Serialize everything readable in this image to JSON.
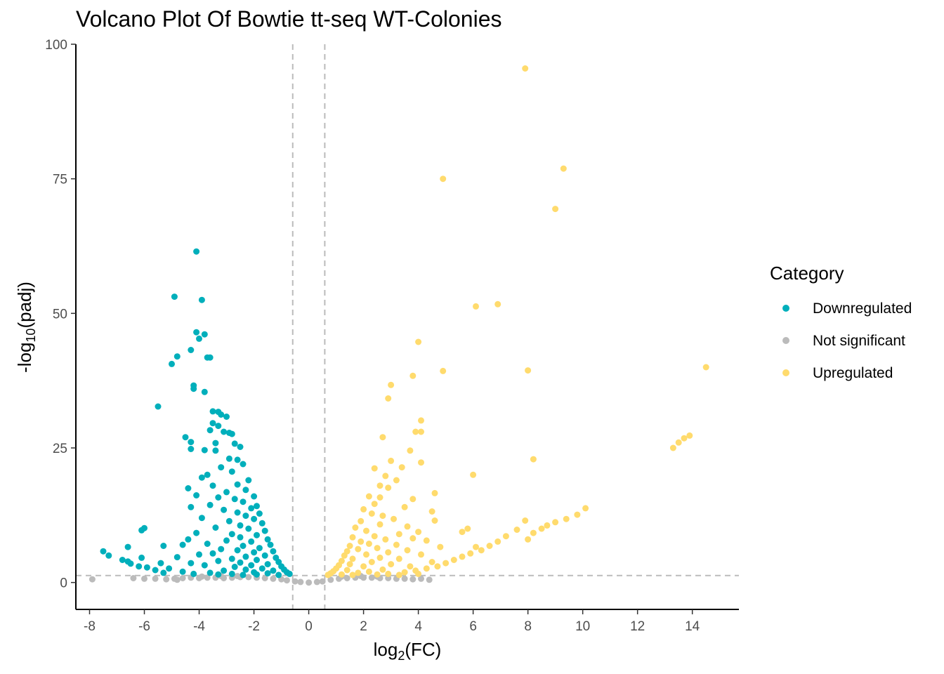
{
  "chart_data": {
    "type": "scatter",
    "title": "Volcano Plot Of Bowtie tt-seq WT-Colonies",
    "xlabel_main": "log",
    "xlabel_sub": "2",
    "xlabel_rest": "(FC)",
    "ylabel_main": "-log",
    "ylabel_sub": "10",
    "ylabel_rest": "(padj)",
    "xlim": [
      -8.5,
      15.7
    ],
    "ylim": [
      -5,
      100
    ],
    "x_ticks": [
      -8,
      -6,
      -4,
      -2,
      0,
      2,
      4,
      6,
      8,
      10,
      12,
      14
    ],
    "x_tick_labels": [
      "-8",
      "-6",
      "-4",
      "-2",
      "0",
      "2",
      "4",
      "6",
      "8",
      "10",
      "12",
      "14"
    ],
    "y_ticks": [
      0,
      25,
      50,
      75,
      100
    ],
    "y_tick_labels": [
      "0",
      "25",
      "50",
      "75",
      "100"
    ],
    "thresholds": {
      "fc_low": -0.585,
      "fc_high": 0.585,
      "padj_line": 1.3
    },
    "legend": {
      "title": "Category",
      "position": "right",
      "entries": [
        {
          "name": "Downregulated",
          "color": "#00AFBB"
        },
        {
          "name": "Not significant",
          "color": "#BBBBBB"
        },
        {
          "name": "Upregulated",
          "color": "#FFDB6D"
        }
      ]
    },
    "series": [
      {
        "name": "Not significant",
        "color": "#BBBBBB",
        "points": [
          [
            -6.4,
            0.8
          ],
          [
            -6.0,
            0.7
          ],
          [
            -5.6,
            0.7
          ],
          [
            -5.2,
            0.6
          ],
          [
            -4.9,
            0.7
          ],
          [
            -4.6,
            0.8
          ],
          [
            -4.3,
            0.9
          ],
          [
            -4.0,
            0.8
          ],
          [
            -3.7,
            0.9
          ],
          [
            -3.4,
            0.9
          ],
          [
            -3.1,
            0.8
          ],
          [
            -2.8,
            0.9
          ],
          [
            -2.5,
            1.0
          ],
          [
            -2.2,
            1.0
          ],
          [
            -1.9,
            0.9
          ],
          [
            -1.6,
            0.8
          ],
          [
            -1.3,
            0.7
          ],
          [
            -1.0,
            0.6
          ],
          [
            -0.8,
            0.4
          ],
          [
            -0.5,
            0.2
          ],
          [
            -0.3,
            0.1
          ],
          [
            0.0,
            0.0
          ],
          [
            0.3,
            0.1
          ],
          [
            0.5,
            0.2
          ],
          [
            0.8,
            0.5
          ],
          [
            1.1,
            0.7
          ],
          [
            1.4,
            0.8
          ],
          [
            1.7,
            0.9
          ],
          [
            2.0,
            0.9
          ],
          [
            2.3,
            0.9
          ],
          [
            2.6,
            0.8
          ],
          [
            2.9,
            0.8
          ],
          [
            3.2,
            0.7
          ],
          [
            3.5,
            0.7
          ],
          [
            3.8,
            0.6
          ],
          [
            4.1,
            0.7
          ],
          [
            -3.9,
            1.1
          ],
          [
            -3.2,
            1.2
          ],
          [
            -2.6,
            1.2
          ],
          [
            1.2,
            1.1
          ],
          [
            1.9,
            1.2
          ],
          [
            2.5,
            1.1
          ],
          [
            -7.9,
            0.6
          ],
          [
            -4.8,
            0.5
          ],
          [
            4.4,
            0.5
          ]
        ]
      },
      {
        "name": "Downregulated",
        "color": "#00AFBB",
        "points": [
          [
            -4.1,
            61.5
          ],
          [
            -4.9,
            53.1
          ],
          [
            -3.9,
            52.5
          ],
          [
            -4.1,
            46.5
          ],
          [
            -3.8,
            46.1
          ],
          [
            -4.0,
            45.3
          ],
          [
            -4.3,
            43.2
          ],
          [
            -4.8,
            42.0
          ],
          [
            -3.7,
            41.8
          ],
          [
            -3.6,
            41.8
          ],
          [
            -5.0,
            40.6
          ],
          [
            -4.2,
            36.6
          ],
          [
            -4.2,
            36.0
          ],
          [
            -3.8,
            35.4
          ],
          [
            -5.5,
            32.7
          ],
          [
            -3.5,
            31.8
          ],
          [
            -3.3,
            31.7
          ],
          [
            -3.2,
            31.2
          ],
          [
            -3.0,
            30.8
          ],
          [
            -3.5,
            29.6
          ],
          [
            -3.3,
            29.1
          ],
          [
            -3.6,
            28.3
          ],
          [
            -3.1,
            28.0
          ],
          [
            -2.9,
            27.8
          ],
          [
            -2.8,
            27.6
          ],
          [
            -4.5,
            27.0
          ],
          [
            -4.3,
            26.1
          ],
          [
            -3.4,
            25.9
          ],
          [
            -2.7,
            25.8
          ],
          [
            -2.5,
            25.2
          ],
          [
            -4.3,
            24.8
          ],
          [
            -3.8,
            24.6
          ],
          [
            -3.4,
            24.5
          ],
          [
            -2.9,
            23.0
          ],
          [
            -2.6,
            22.8
          ],
          [
            -2.4,
            22.0
          ],
          [
            -3.2,
            21.4
          ],
          [
            -2.8,
            20.6
          ],
          [
            -3.9,
            19.5
          ],
          [
            -3.7,
            20.0
          ],
          [
            -2.2,
            19.0
          ],
          [
            -3.5,
            18.0
          ],
          [
            -2.6,
            18.2
          ],
          [
            -4.4,
            17.5
          ],
          [
            -2.3,
            17.2
          ],
          [
            -3.0,
            16.8
          ],
          [
            -4.1,
            16.2
          ],
          [
            -2.0,
            16.0
          ],
          [
            -3.3,
            15.8
          ],
          [
            -2.7,
            15.5
          ],
          [
            -2.4,
            15.0
          ],
          [
            -3.6,
            14.4
          ],
          [
            -1.9,
            14.2
          ],
          [
            -4.3,
            14.0
          ],
          [
            -2.1,
            13.8
          ],
          [
            -3.1,
            13.5
          ],
          [
            -2.6,
            13.0
          ],
          [
            -1.8,
            12.8
          ],
          [
            -2.3,
            12.4
          ],
          [
            -3.9,
            12.0
          ],
          [
            -2.0,
            11.8
          ],
          [
            -2.9,
            11.4
          ],
          [
            -1.7,
            11.0
          ],
          [
            -2.5,
            10.6
          ],
          [
            -6.0,
            10.1
          ],
          [
            -6.1,
            9.7
          ],
          [
            -3.4,
            10.2
          ],
          [
            -2.2,
            10.0
          ],
          [
            -1.6,
            9.6
          ],
          [
            -4.1,
            9.2
          ],
          [
            -2.8,
            9.0
          ],
          [
            -1.9,
            8.8
          ],
          [
            -2.5,
            8.4
          ],
          [
            -4.4,
            8.0
          ],
          [
            -1.5,
            8.0
          ],
          [
            -3.0,
            7.8
          ],
          [
            -2.1,
            7.6
          ],
          [
            -4.6,
            7.0
          ],
          [
            -3.7,
            7.2
          ],
          [
            -1.4,
            7.0
          ],
          [
            -2.4,
            6.8
          ],
          [
            -5.3,
            6.8
          ],
          [
            -6.6,
            6.6
          ],
          [
            -1.8,
            6.4
          ],
          [
            -3.2,
            6.2
          ],
          [
            -2.6,
            6.0
          ],
          [
            -7.5,
            5.8
          ],
          [
            -1.3,
            5.8
          ],
          [
            -2.0,
            5.6
          ],
          [
            -3.5,
            5.4
          ],
          [
            -7.3,
            5.0
          ],
          [
            -4.0,
            5.2
          ],
          [
            -1.6,
            5.0
          ],
          [
            -2.3,
            4.8
          ],
          [
            -4.8,
            4.7
          ],
          [
            -6.1,
            4.6
          ],
          [
            -1.2,
            4.6
          ],
          [
            -2.8,
            4.4
          ],
          [
            -1.9,
            4.2
          ],
          [
            -6.8,
            4.2
          ],
          [
            -6.6,
            3.9
          ],
          [
            -3.3,
            4.0
          ],
          [
            -1.1,
            3.8
          ],
          [
            -2.5,
            3.7
          ],
          [
            -4.3,
            3.6
          ],
          [
            -6.5,
            3.5
          ],
          [
            -5.4,
            3.6
          ],
          [
            -1.5,
            3.4
          ],
          [
            -2.1,
            3.2
          ],
          [
            -6.2,
            3.0
          ],
          [
            -3.8,
            3.2
          ],
          [
            -1.0,
            3.0
          ],
          [
            -2.7,
            2.9
          ],
          [
            -5.9,
            2.8
          ],
          [
            -1.7,
            2.6
          ],
          [
            -5.1,
            2.6
          ],
          [
            -0.9,
            2.4
          ],
          [
            -2.3,
            2.4
          ],
          [
            -5.6,
            2.3
          ],
          [
            -3.1,
            2.2
          ],
          [
            -1.3,
            2.2
          ],
          [
            -4.6,
            2.0
          ],
          [
            -0.8,
            1.9
          ],
          [
            -2.0,
            1.9
          ],
          [
            -3.6,
            1.8
          ],
          [
            -5.3,
            1.8
          ],
          [
            -1.5,
            1.7
          ],
          [
            -2.8,
            1.6
          ],
          [
            -0.7,
            1.6
          ],
          [
            -4.2,
            1.6
          ],
          [
            -1.9,
            1.5
          ],
          [
            -3.3,
            1.5
          ],
          [
            -2.4,
            1.4
          ],
          [
            -1.1,
            1.4
          ]
        ]
      },
      {
        "name": "Upregulated",
        "color": "#FFDB6D",
        "points": [
          [
            7.9,
            95.5
          ],
          [
            9.3,
            76.9
          ],
          [
            4.9,
            75.0
          ],
          [
            9.0,
            69.4
          ],
          [
            6.9,
            51.7
          ],
          [
            6.1,
            51.3
          ],
          [
            4.0,
            44.7
          ],
          [
            14.5,
            40.0
          ],
          [
            4.9,
            39.3
          ],
          [
            8.0,
            39.4
          ],
          [
            3.8,
            38.4
          ],
          [
            3.0,
            36.7
          ],
          [
            2.9,
            34.2
          ],
          [
            4.1,
            30.1
          ],
          [
            13.9,
            27.3
          ],
          [
            13.7,
            26.8
          ],
          [
            4.1,
            28.0
          ],
          [
            3.9,
            28.0
          ],
          [
            13.5,
            26.0
          ],
          [
            2.7,
            27.0
          ],
          [
            13.3,
            25.0
          ],
          [
            3.7,
            24.5
          ],
          [
            8.2,
            22.9
          ],
          [
            3.0,
            22.6
          ],
          [
            4.1,
            22.3
          ],
          [
            3.4,
            21.4
          ],
          [
            2.4,
            21.2
          ],
          [
            6.0,
            20.0
          ],
          [
            2.8,
            19.8
          ],
          [
            3.2,
            19.0
          ],
          [
            2.6,
            18.0
          ],
          [
            2.9,
            17.6
          ],
          [
            4.6,
            16.6
          ],
          [
            2.2,
            16.0
          ],
          [
            2.6,
            15.8
          ],
          [
            3.8,
            15.5
          ],
          [
            2.4,
            14.6
          ],
          [
            10.1,
            13.8
          ],
          [
            3.5,
            14.0
          ],
          [
            2.0,
            13.6
          ],
          [
            4.5,
            13.2
          ],
          [
            9.8,
            12.6
          ],
          [
            2.3,
            12.8
          ],
          [
            2.7,
            12.4
          ],
          [
            9.4,
            11.8
          ],
          [
            3.1,
            11.8
          ],
          [
            7.9,
            11.5
          ],
          [
            9.0,
            11.2
          ],
          [
            1.9,
            11.4
          ],
          [
            4.6,
            11.5
          ],
          [
            8.7,
            10.6
          ],
          [
            2.6,
            10.8
          ],
          [
            3.6,
            10.4
          ],
          [
            8.5,
            10.0
          ],
          [
            1.7,
            10.2
          ],
          [
            5.8,
            10.0
          ],
          [
            7.6,
            9.8
          ],
          [
            2.1,
            9.6
          ],
          [
            5.6,
            9.4
          ],
          [
            4.0,
            9.4
          ],
          [
            8.2,
            9.2
          ],
          [
            3.3,
            9.0
          ],
          [
            2.4,
            8.6
          ],
          [
            1.6,
            8.4
          ],
          [
            7.2,
            8.6
          ],
          [
            3.8,
            8.2
          ],
          [
            8.0,
            8.0
          ],
          [
            2.8,
            8.0
          ],
          [
            4.3,
            7.8
          ],
          [
            1.9,
            7.6
          ],
          [
            6.9,
            7.6
          ],
          [
            2.2,
            7.2
          ],
          [
            3.2,
            7.0
          ],
          [
            1.5,
            6.8
          ],
          [
            6.6,
            6.8
          ],
          [
            4.8,
            6.6
          ],
          [
            2.5,
            6.4
          ],
          [
            6.1,
            6.6
          ],
          [
            1.8,
            6.2
          ],
          [
            3.6,
            6.0
          ],
          [
            6.3,
            6.0
          ],
          [
            1.4,
            5.8
          ],
          [
            2.9,
            5.6
          ],
          [
            5.9,
            5.4
          ],
          [
            2.1,
            5.2
          ],
          [
            4.1,
            5.2
          ],
          [
            1.3,
            5.0
          ],
          [
            5.6,
            4.8
          ],
          [
            2.6,
            4.6
          ],
          [
            1.6,
            4.4
          ],
          [
            3.3,
            4.4
          ],
          [
            5.3,
            4.2
          ],
          [
            1.2,
            4.0
          ],
          [
            2.3,
            3.8
          ],
          [
            4.5,
            3.8
          ],
          [
            5.0,
            3.6
          ],
          [
            1.5,
            3.4
          ],
          [
            3.0,
            3.4
          ],
          [
            1.1,
            3.2
          ],
          [
            4.7,
            3.0
          ],
          [
            2.0,
            3.0
          ],
          [
            3.7,
            3.0
          ],
          [
            1.0,
            2.6
          ],
          [
            4.3,
            2.6
          ],
          [
            2.7,
            2.4
          ],
          [
            1.4,
            2.3
          ],
          [
            3.9,
            2.2
          ],
          [
            0.9,
            2.1
          ],
          [
            2.2,
            2.0
          ],
          [
            3.5,
            1.9
          ],
          [
            1.8,
            1.8
          ],
          [
            0.8,
            1.7
          ],
          [
            2.9,
            1.6
          ],
          [
            4.0,
            1.6
          ],
          [
            1.2,
            1.5
          ],
          [
            2.5,
            1.5
          ],
          [
            3.3,
            1.4
          ],
          [
            0.7,
            1.4
          ],
          [
            1.6,
            1.4
          ]
        ]
      }
    ]
  }
}
